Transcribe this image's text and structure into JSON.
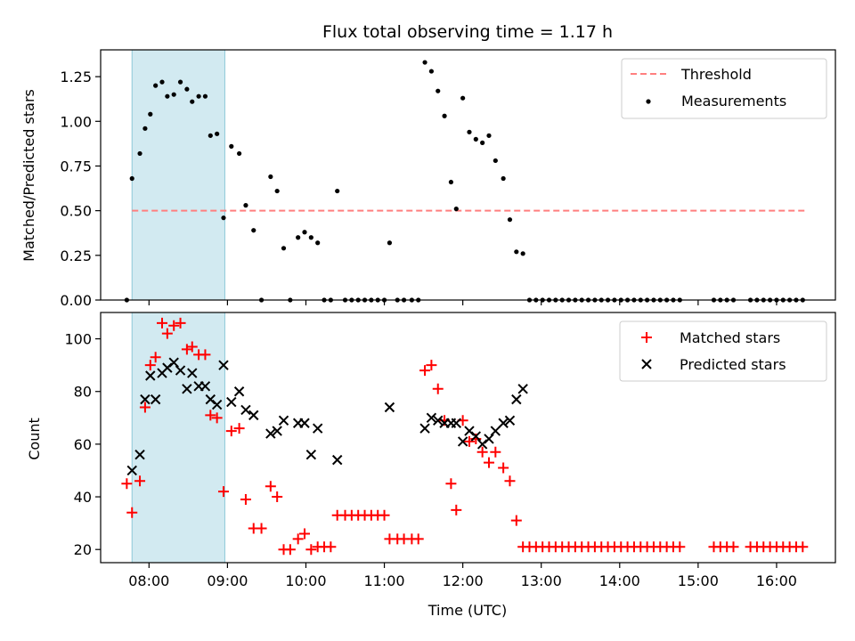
{
  "chart_data": [
    {
      "type": "scatter",
      "title": "Flux total observing time = 1.17 h",
      "xlabel": "",
      "ylabel": "Matched/Predicted stars",
      "ylim": [
        0,
        1.4
      ],
      "yticks": [
        "0.00",
        "0.25",
        "0.50",
        "0.75",
        "1.00",
        "1.25"
      ],
      "legend_position": "top-right",
      "shaded_interval": {
        "start": "07:47",
        "end": "08:58",
        "color": "#add8e6"
      },
      "threshold": {
        "name": "Threshold",
        "value": 0.5,
        "x_start": "07:47",
        "x_end": "16:22",
        "color": "#ff7f7f"
      },
      "series": [
        {
          "name": "Measurements",
          "color": "#000000",
          "points": [
            [
              "07:43",
              0
            ],
            [
              "07:47",
              0.68
            ],
            [
              "07:53",
              0.82
            ],
            [
              "07:57",
              0.96
            ],
            [
              "08:01",
              1.04
            ],
            [
              "08:05",
              1.2
            ],
            [
              "08:10",
              1.22
            ],
            [
              "08:14",
              1.14
            ],
            [
              "08:19",
              1.15
            ],
            [
              "08:24",
              1.22
            ],
            [
              "08:29",
              1.18
            ],
            [
              "08:33",
              1.11
            ],
            [
              "08:38",
              1.14
            ],
            [
              "08:43",
              1.14
            ],
            [
              "08:47",
              0.92
            ],
            [
              "08:52",
              0.93
            ],
            [
              "08:57",
              0.46
            ],
            [
              "09:03",
              0.86
            ],
            [
              "09:09",
              0.82
            ],
            [
              "09:14",
              0.53
            ],
            [
              "09:20",
              0.39
            ],
            [
              "09:26",
              0
            ],
            [
              "09:33",
              0.69
            ],
            [
              "09:38",
              0.61
            ],
            [
              "09:43",
              0.29
            ],
            [
              "09:48",
              0
            ],
            [
              "09:54",
              0.35
            ],
            [
              "09:59",
              0.38
            ],
            [
              "10:04",
              0.35
            ],
            [
              "10:09",
              0.32
            ],
            [
              "10:14",
              0
            ],
            [
              "10:19",
              0
            ],
            [
              "10:24",
              0.61
            ],
            [
              "10:30",
              0
            ],
            [
              "10:35",
              0
            ],
            [
              "10:40",
              0
            ],
            [
              "10:45",
              0
            ],
            [
              "10:50",
              0
            ],
            [
              "10:55",
              0
            ],
            [
              "11:00",
              0
            ],
            [
              "11:04",
              0.32
            ],
            [
              "11:10",
              0
            ],
            [
              "11:15",
              0
            ],
            [
              "11:21",
              0
            ],
            [
              "11:26",
              0
            ],
            [
              "11:31",
              1.33
            ],
            [
              "11:36",
              1.28
            ],
            [
              "11:41",
              1.17
            ],
            [
              "11:46",
              1.03
            ],
            [
              "11:51",
              0.66
            ],
            [
              "11:55",
              0.51
            ],
            [
              "12:00",
              1.13
            ],
            [
              "12:05",
              0.94
            ],
            [
              "12:10",
              0.9
            ],
            [
              "12:15",
              0.88
            ],
            [
              "12:20",
              0.92
            ],
            [
              "12:25",
              0.78
            ],
            [
              "12:31",
              0.68
            ],
            [
              "12:36",
              0.45
            ],
            [
              "12:41",
              0.27
            ],
            [
              "12:46",
              0.26
            ],
            [
              "12:51",
              0
            ],
            [
              "12:56",
              0
            ],
            [
              "13:01",
              0
            ],
            [
              "13:06",
              0
            ],
            [
              "13:11",
              0
            ],
            [
              "13:16",
              0
            ],
            [
              "13:21",
              0
            ],
            [
              "13:26",
              0
            ],
            [
              "13:31",
              0
            ],
            [
              "13:36",
              0
            ],
            [
              "13:41",
              0
            ],
            [
              "13:46",
              0
            ],
            [
              "13:51",
              0
            ],
            [
              "13:56",
              0
            ],
            [
              "14:01",
              0
            ],
            [
              "14:06",
              0
            ],
            [
              "14:11",
              0
            ],
            [
              "14:16",
              0
            ],
            [
              "14:21",
              0
            ],
            [
              "14:26",
              0
            ],
            [
              "14:31",
              0
            ],
            [
              "14:36",
              0
            ],
            [
              "14:41",
              0
            ],
            [
              "14:46",
              0
            ],
            [
              "15:12",
              0
            ],
            [
              "15:17",
              0
            ],
            [
              "15:22",
              0
            ],
            [
              "15:27",
              0
            ],
            [
              "15:40",
              0
            ],
            [
              "15:45",
              0
            ],
            [
              "15:50",
              0
            ],
            [
              "15:55",
              0
            ],
            [
              "16:00",
              0
            ],
            [
              "16:05",
              0
            ],
            [
              "16:10",
              0
            ],
            [
              "16:15",
              0
            ],
            [
              "16:20",
              0
            ]
          ]
        }
      ]
    },
    {
      "type": "scatter",
      "title": "",
      "xlabel": "Time (UTC)",
      "ylabel": "Count",
      "ylim": [
        15,
        110
      ],
      "yticks": [
        "20",
        "40",
        "60",
        "80",
        "100"
      ],
      "xticks": [
        "08:00",
        "09:00",
        "10:00",
        "11:00",
        "12:00",
        "13:00",
        "14:00",
        "15:00",
        "16:00"
      ],
      "legend_position": "top-right",
      "shaded_interval": {
        "start": "07:47",
        "end": "08:58",
        "color": "#add8e6"
      },
      "series": [
        {
          "name": "Matched stars",
          "color": "#ff0000",
          "marker": "plus",
          "points": [
            [
              "07:43",
              45
            ],
            [
              "07:47",
              34
            ],
            [
              "07:53",
              46
            ],
            [
              "07:57",
              74
            ],
            [
              "08:01",
              90
            ],
            [
              "08:05",
              93
            ],
            [
              "08:10",
              106
            ],
            [
              "08:14",
              102
            ],
            [
              "08:19",
              105
            ],
            [
              "08:24",
              106
            ],
            [
              "08:29",
              96
            ],
            [
              "08:33",
              97
            ],
            [
              "08:38",
              94
            ],
            [
              "08:43",
              94
            ],
            [
              "08:47",
              71
            ],
            [
              "08:52",
              70
            ],
            [
              "08:57",
              42
            ],
            [
              "09:03",
              65
            ],
            [
              "09:09",
              66
            ],
            [
              "09:14",
              39
            ],
            [
              "09:20",
              28
            ],
            [
              "09:26",
              28
            ],
            [
              "09:33",
              44
            ],
            [
              "09:38",
              40
            ],
            [
              "09:43",
              20
            ],
            [
              "09:48",
              20
            ],
            [
              "09:54",
              24
            ],
            [
              "09:59",
              26
            ],
            [
              "10:04",
              20
            ],
            [
              "10:09",
              21
            ],
            [
              "10:14",
              21
            ],
            [
              "10:19",
              21
            ],
            [
              "10:24",
              33
            ],
            [
              "10:30",
              33
            ],
            [
              "10:35",
              33
            ],
            [
              "10:40",
              33
            ],
            [
              "10:45",
              33
            ],
            [
              "10:50",
              33
            ],
            [
              "10:55",
              33
            ],
            [
              "11:00",
              33
            ],
            [
              "11:04",
              24
            ],
            [
              "11:10",
              24
            ],
            [
              "11:15",
              24
            ],
            [
              "11:21",
              24
            ],
            [
              "11:26",
              24
            ],
            [
              "11:31",
              88
            ],
            [
              "11:36",
              90
            ],
            [
              "11:41",
              81
            ],
            [
              "11:46",
              69
            ],
            [
              "11:51",
              45
            ],
            [
              "11:55",
              35
            ],
            [
              "12:00",
              69
            ],
            [
              "12:05",
              61
            ],
            [
              "12:10",
              62
            ],
            [
              "12:15",
              57
            ],
            [
              "12:20",
              53
            ],
            [
              "12:25",
              57
            ],
            [
              "12:31",
              51
            ],
            [
              "12:36",
              46
            ],
            [
              "12:41",
              31
            ],
            [
              "12:46",
              21
            ],
            [
              "12:51",
              21
            ],
            [
              "12:56",
              21
            ],
            [
              "13:01",
              21
            ],
            [
              "13:06",
              21
            ],
            [
              "13:11",
              21
            ],
            [
              "13:16",
              21
            ],
            [
              "13:21",
              21
            ],
            [
              "13:26",
              21
            ],
            [
              "13:31",
              21
            ],
            [
              "13:36",
              21
            ],
            [
              "13:41",
              21
            ],
            [
              "13:46",
              21
            ],
            [
              "13:51",
              21
            ],
            [
              "13:56",
              21
            ],
            [
              "14:01",
              21
            ],
            [
              "14:06",
              21
            ],
            [
              "14:11",
              21
            ],
            [
              "14:16",
              21
            ],
            [
              "14:21",
              21
            ],
            [
              "14:26",
              21
            ],
            [
              "14:31",
              21
            ],
            [
              "14:36",
              21
            ],
            [
              "14:41",
              21
            ],
            [
              "14:46",
              21
            ],
            [
              "15:12",
              21
            ],
            [
              "15:17",
              21
            ],
            [
              "15:22",
              21
            ],
            [
              "15:27",
              21
            ],
            [
              "15:40",
              21
            ],
            [
              "15:45",
              21
            ],
            [
              "15:50",
              21
            ],
            [
              "15:55",
              21
            ],
            [
              "16:00",
              21
            ],
            [
              "16:05",
              21
            ],
            [
              "16:10",
              21
            ],
            [
              "16:15",
              21
            ],
            [
              "16:20",
              21
            ]
          ]
        },
        {
          "name": "Predicted stars",
          "color": "#000000",
          "marker": "x",
          "points": [
            [
              "07:47",
              50
            ],
            [
              "07:53",
              56
            ],
            [
              "07:57",
              77
            ],
            [
              "08:01",
              86
            ],
            [
              "08:05",
              77
            ],
            [
              "08:10",
              87
            ],
            [
              "08:14",
              89
            ],
            [
              "08:19",
              91
            ],
            [
              "08:24",
              88
            ],
            [
              "08:29",
              81
            ],
            [
              "08:33",
              87
            ],
            [
              "08:38",
              82
            ],
            [
              "08:43",
              82
            ],
            [
              "08:47",
              77
            ],
            [
              "08:52",
              75
            ],
            [
              "08:57",
              90
            ],
            [
              "09:03",
              76
            ],
            [
              "09:09",
              80
            ],
            [
              "09:14",
              73
            ],
            [
              "09:20",
              71
            ],
            [
              "09:33",
              64
            ],
            [
              "09:38",
              65
            ],
            [
              "09:43",
              69
            ],
            [
              "09:54",
              68
            ],
            [
              "09:59",
              68
            ],
            [
              "10:04",
              56
            ],
            [
              "10:09",
              66
            ],
            [
              "10:24",
              54
            ],
            [
              "11:04",
              74
            ],
            [
              "11:31",
              66
            ],
            [
              "11:36",
              70
            ],
            [
              "11:41",
              69
            ],
            [
              "11:46",
              68
            ],
            [
              "11:51",
              68
            ],
            [
              "11:55",
              68
            ],
            [
              "12:00",
              61
            ],
            [
              "12:05",
              65
            ],
            [
              "12:10",
              63
            ],
            [
              "12:15",
              60
            ],
            [
              "12:20",
              62
            ],
            [
              "12:25",
              65
            ],
            [
              "12:31",
              68
            ],
            [
              "12:36",
              69
            ],
            [
              "12:41",
              77
            ],
            [
              "12:46",
              81
            ]
          ]
        }
      ]
    }
  ]
}
